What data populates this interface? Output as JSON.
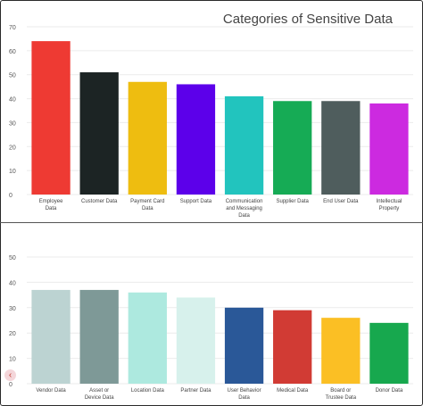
{
  "chart_data": [
    {
      "type": "bar",
      "title": "Categories of Sensitive Data",
      "categories": [
        "Employee Data",
        "Customer Data",
        "Payment Card Data",
        "Support Data",
        "Communication and Messaging Data",
        "Supplier Data",
        "End User Data",
        "Intellectual Property"
      ],
      "values": [
        64,
        51,
        47,
        46,
        41,
        39,
        39,
        38
      ],
      "colors": [
        "#ee3a33",
        "#1c2424",
        "#eebd10",
        "#5c00ea",
        "#22c4be",
        "#16ab55",
        "#4f5d5d",
        "#cc2ae0"
      ],
      "yticks": [
        0,
        10,
        20,
        30,
        40,
        50,
        60,
        70
      ],
      "ylim": [
        0,
        70
      ],
      "grid": true
    },
    {
      "type": "bar",
      "categories": [
        "Vendor Data",
        "Asset or Device Data",
        "Location Data",
        "Partner Data",
        "User Behavior Data",
        "Medical Data",
        "Board or Trustee Data",
        "Donor Data"
      ],
      "values": [
        37,
        37,
        36,
        34,
        30,
        29,
        26,
        24
      ],
      "colors": [
        "#bcd3d2",
        "#7e9997",
        "#ade9df",
        "#d7f1ec",
        "#2a5898",
        "#d13b34",
        "#fbbf24",
        "#17a84e"
      ],
      "yticks": [
        0,
        10,
        20,
        30,
        40,
        50
      ],
      "ylim": [
        0,
        50
      ],
      "grid": true
    }
  ],
  "labels": {
    "top": [
      [
        "Employee",
        "Data"
      ],
      [
        "Customer Data"
      ],
      [
        "Payment Card",
        "Data"
      ],
      [
        "Support Data"
      ],
      [
        "Communication",
        "and Messaging",
        "Data"
      ],
      [
        "Supplier Data"
      ],
      [
        "End User Data"
      ],
      [
        "Intellectual",
        "Property"
      ]
    ],
    "bottom": [
      [
        "Vendor Data"
      ],
      [
        "Asset or",
        "Device Data"
      ],
      [
        "Location Data"
      ],
      [
        "Partner Data"
      ],
      [
        "User Behavior",
        "Data"
      ],
      [
        "Medical Data"
      ],
      [
        "Board or",
        "Trustee Data"
      ],
      [
        "Donor Data"
      ]
    ]
  },
  "nav": {
    "prev_icon": "chevron-left-icon",
    "prev_glyph": "‹"
  }
}
